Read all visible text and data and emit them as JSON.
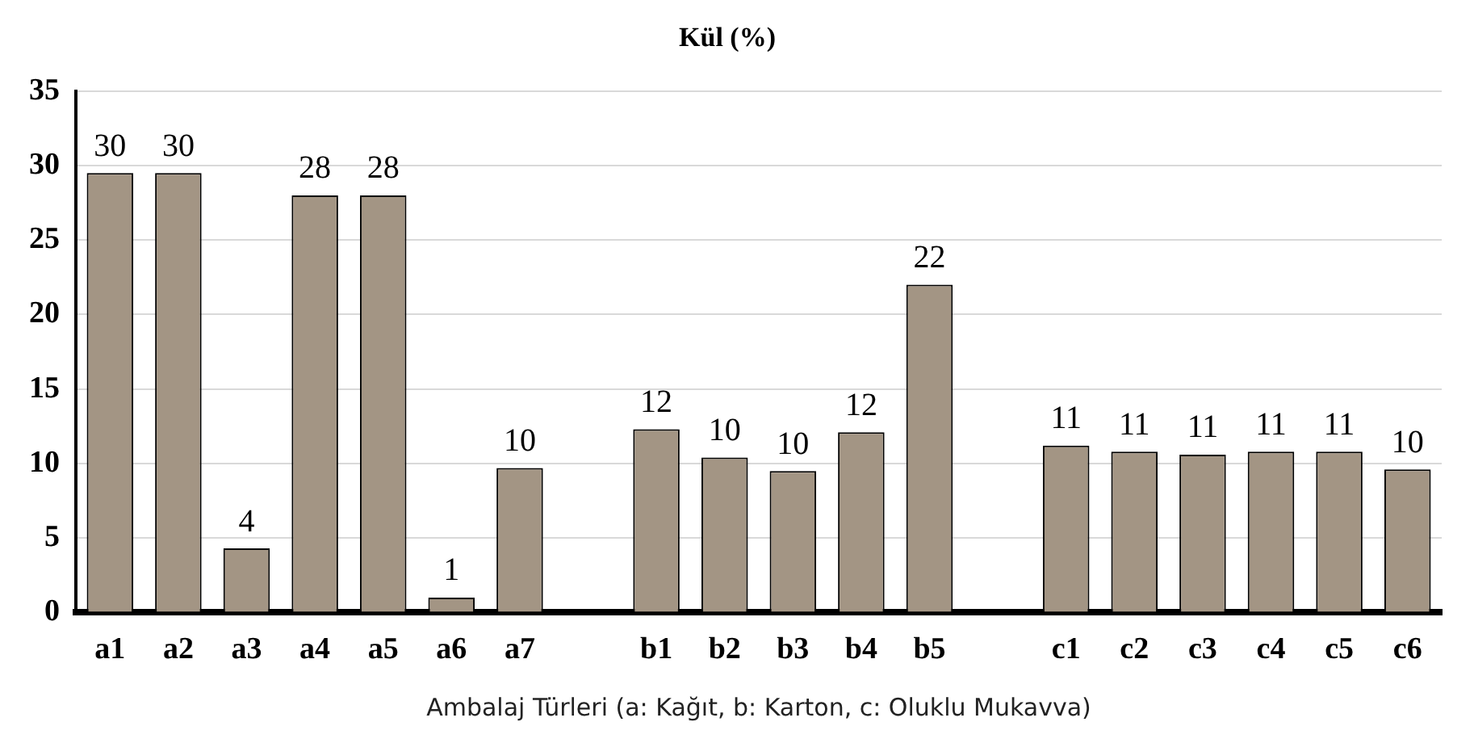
{
  "chart_data": {
    "type": "bar",
    "title": "Kül (%)",
    "xlabel": "Ambalaj Türleri (a: Kağıt, b: Karton, c: Oluklu Mukavva)",
    "categories": [
      "a1",
      "a2",
      "a3",
      "a4",
      "a5",
      "a6",
      "a7",
      null,
      "b1",
      "b2",
      "b3",
      "b4",
      "b5",
      null,
      "c1",
      "c2",
      "c3",
      "c4",
      "c5",
      "c6"
    ],
    "values": [
      29.5,
      29.5,
      4.3,
      28,
      28,
      1,
      9.7,
      null,
      12.3,
      10.4,
      9.5,
      12.1,
      22,
      null,
      11.2,
      10.8,
      10.6,
      10.8,
      10.8,
      9.6
    ],
    "value_labels": [
      "30",
      "30",
      "4",
      "28",
      "28",
      "1",
      "10",
      null,
      "12",
      "10",
      "10",
      "12",
      "22",
      null,
      "11",
      "11",
      "11",
      "11",
      "11",
      "10"
    ],
    "color": "#a39584",
    "ylim": [
      0,
      35
    ],
    "yticks": [
      0,
      5,
      10,
      15,
      20,
      25,
      30,
      35
    ],
    "grid": "y",
    "legend": false
  }
}
